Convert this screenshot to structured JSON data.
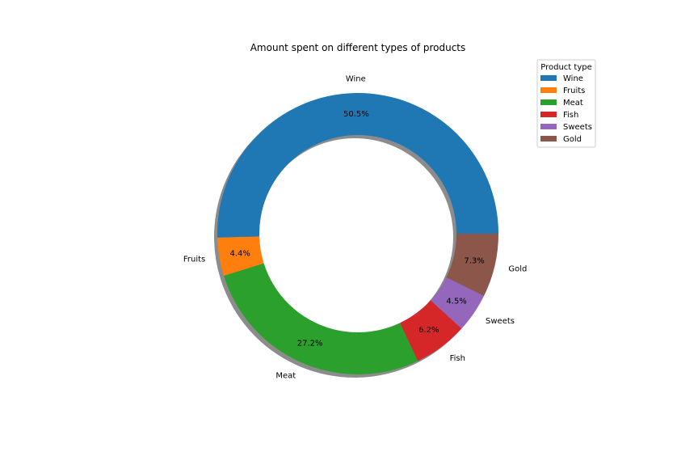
{
  "chart_data": {
    "type": "pie",
    "style": "donut",
    "title": "Amount spent on different types of products",
    "labels": [
      "Wine",
      "Fruits",
      "Meat",
      "Fish",
      "Sweets",
      "Gold"
    ],
    "values": [
      50.5,
      4.4,
      27.2,
      6.2,
      4.5,
      7.3
    ],
    "value_labels": [
      "50.5%",
      "4.4%",
      "27.2%",
      "6.2%",
      "4.5%",
      "7.3%"
    ],
    "colors": [
      "#1f77b4",
      "#ff7f0e",
      "#2ca02c",
      "#d62728",
      "#9467bd",
      "#8c564b"
    ],
    "start_angle_deg": 0,
    "direction": "counterclockwise",
    "shadow": true,
    "legend": {
      "title": "Product type",
      "placement": "upper-right",
      "entries": [
        "Wine",
        "Fruits",
        "Meat",
        "Fish",
        "Sweets",
        "Gold"
      ]
    }
  }
}
